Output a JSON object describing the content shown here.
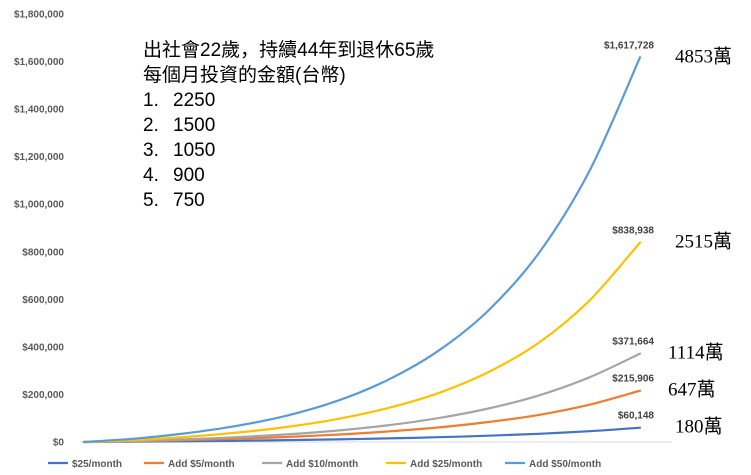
{
  "note": {
    "line1": "出社會22歲，持續44年到退休65歲",
    "line2": "每個月投資的金額(台幣)",
    "items": [
      {
        "num": "1.",
        "value": "2250"
      },
      {
        "num": "2.",
        "value": "1500"
      },
      {
        "num": "3.",
        "value": "1050"
      },
      {
        "num": "4.",
        "value": "900"
      },
      {
        "num": "5.",
        "value": "750"
      }
    ]
  },
  "chart_data": {
    "type": "line",
    "title": "",
    "xlabel": "",
    "ylabel": "",
    "ylim": [
      0,
      1800000
    ],
    "y_ticks": [
      "$0",
      "$200,000",
      "$400,000",
      "$600,000",
      "$800,000",
      "$1,000,000",
      "$1,200,000",
      "$1,400,000",
      "$1,600,000",
      "$1,800,000"
    ],
    "grid": false,
    "legend_position": "bottom",
    "x": [
      0,
      4,
      8,
      12,
      16,
      20,
      24,
      28,
      32,
      36,
      40,
      44
    ],
    "series": [
      {
        "name": "$25/month",
        "color": "#4472C4",
        "end_label": "$60,148",
        "wan": "180萬",
        "values": [
          0,
          1400,
          3100,
          5200,
          7800,
          11000,
          15000,
          20000,
          26500,
          34500,
          45500,
          60148
        ]
      },
      {
        "name": "Add $5/month",
        "color": "#ED7D31",
        "end_label": "$215,906",
        "wan": "647萬",
        "values": [
          0,
          3000,
          7500,
          13500,
          21000,
          31000,
          44000,
          61000,
          84000,
          114000,
          157000,
          215906
        ]
      },
      {
        "name": "Add $10/month",
        "color": "#A5A5A5",
        "end_label": "$371,664",
        "wan": "1114萬",
        "values": [
          0,
          4000,
          11000,
          20000,
          32000,
          48000,
          70000,
          100000,
          141000,
          196000,
          272000,
          371664
        ]
      },
      {
        "name": "Add $25/month",
        "color": "#FFC000",
        "end_label": "$838,938",
        "wan": "2515萬",
        "values": [
          0,
          8000,
          21000,
          39000,
          63000,
          96000,
          142000,
          205000,
          294000,
          418000,
          595000,
          838938
        ]
      },
      {
        "name": "Add $50/month",
        "color": "#5B9BD5",
        "end_label": "$1,617,728",
        "wan": "4853萬",
        "values": [
          0,
          14000,
          36000,
          67000,
          110000,
          172000,
          260000,
          382000,
          553000,
          795000,
          1140000,
          1617728
        ]
      }
    ]
  }
}
